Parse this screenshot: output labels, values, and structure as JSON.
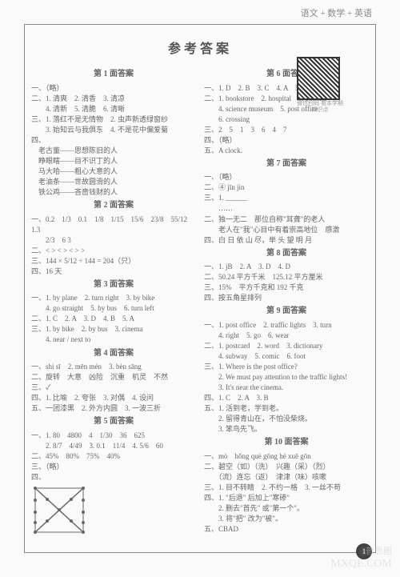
{
  "header": "语文 + 数学 + 英语",
  "title": "参考答案",
  "qr_caption": "微信扫码\n看本学期知识点",
  "page_num": "1",
  "wm1": "普思图",
  "wm2": "MXQE.COM",
  "left": {
    "s1": {
      "h": "第 1 面答案",
      "l": [
        "一、（略）",
        "二、1. 清爽　2. 清香　3. 清凉",
        "　　4. 清新　5. 清脆　6. 清晰",
        "三、1. 落红不是无情物　2. 虫声新透绿窗纱",
        "　　3. 始知云与我俱东　4. 不是花中偏爱菊",
        "四、",
        "　老古董——思想陈旧的人",
        "　睁眼瞎——目不识丁的人",
        "　马大哈——粗心大意的人",
        "　老油条——世故圆滑的人",
        "　铁公鸡——吝啬钱财的人"
      ]
    },
    "s2": {
      "h": "第 2 面答案",
      "l": [
        "一、0.2　1/3　0.1　1/8　1/15　15/6　23/8　55/12　1.3",
        "　　2/3　6 3",
        "二、< > < > < > >",
        "三、144 × 5/12 ÷ 144 = 204（只）",
        "四、16 天"
      ]
    },
    "s3": {
      "h": "第 3 面答案",
      "l": [
        "一、1. by plane　2. turn right　3. by bike",
        "　　4. go straight　5. by bus　6. turn left",
        "二、1. C　2. A　3. D　4. B　5. A",
        "三、1. by bike　2. by bus　3. cinema",
        "　　4. near / next to"
      ]
    },
    "s4": {
      "h": "第 4 面答案",
      "l": [
        "一、shí sī　2. mēn mén　3. bèn sāng",
        "二、旋转　大意　凶险　沉重　机灵　不然",
        "三、✓",
        "四、1. 比喻　2. 夸张　3. 对偶　4. 设问",
        "五、一团漆黑　2. 外方内圆　3. 一波三折"
      ]
    },
    "s5": {
      "h": "第 5 面答案",
      "l": [
        "一、1. 80　4800　4　1/30　36　625",
        "　　2. 8/7　4/49　3. 0.1　11/4　4. 5/6　60",
        "二、45%　80%　75%　40%",
        "三、（略）",
        "四、"
      ]
    }
  },
  "right": {
    "s6": {
      "h": "第 6 面答案",
      "l": [
        "一、1. D　2. B　3. C　4. A　5. C",
        "二、1. bookstore　2. hospital　3. cinema",
        "　　4. science museum　5. post office",
        "　　6. crossing",
        "三、2　5　1　3　6　4　7",
        "四、（略）",
        "五、A clock."
      ]
    },
    "s7": {
      "h": "第 7 面答案",
      "l": [
        "一、（略）",
        "二、④ jīn jìn",
        "三、1. ______",
        "　　……",
        "二、独一无二　那位自称\"耳聋\"的老人",
        "　　老人在\"我\"心目中有着崇高地位　感激",
        "四、白 日 依 山 尽，举 头 望 明 月"
      ]
    },
    "s8": {
      "h": "第 8 面答案",
      "l": [
        "一、1. jB　2. A　3. D　4. D",
        "二、50.24 平方千米　125.12 平方厘米",
        "三、15%　平方千克和 192 千克",
        "四、按五角星排列"
      ]
    },
    "s9": {
      "h": "第 9 面答案",
      "l": [
        "一、1. post office　2. traffic lights　3. turn",
        "　　4. right　5. go　6. wear",
        "二、1. postcard　2. word　3. dictionary",
        "　　4. subway　5. comic　6. foot",
        "三、1. Where is the post office?",
        "　　2. We must pay attention to the traffic lights!",
        "　　3. It's near the cinema.",
        "四、1. C　2. A　3. B",
        "五、1. 活到老，学到老。",
        "　　2. 留得青山在，不怕没柴烧。",
        "　　3. 笨鸟先飞。"
      ]
    },
    "s10": {
      "h": "第 10 面答案",
      "l": [
        "一、mò　hǒng què gōng hè xuē gōn",
        "二、碧空（如）（洗）　兴趣（采）（烈）",
        "　　（流）连忘（返）　津津（味）咳嗽",
        "三、1. 目不转睛　2. 不约一格　3. 一丝不苟",
        "四、1. \"后退\" 后加上\"寒碜\"",
        "　　2. 删去\"首先\" 或\"第一个\"。",
        "　　3. 将\"把\" 改为\"被\"。",
        "五、CBAD"
      ]
    }
  }
}
